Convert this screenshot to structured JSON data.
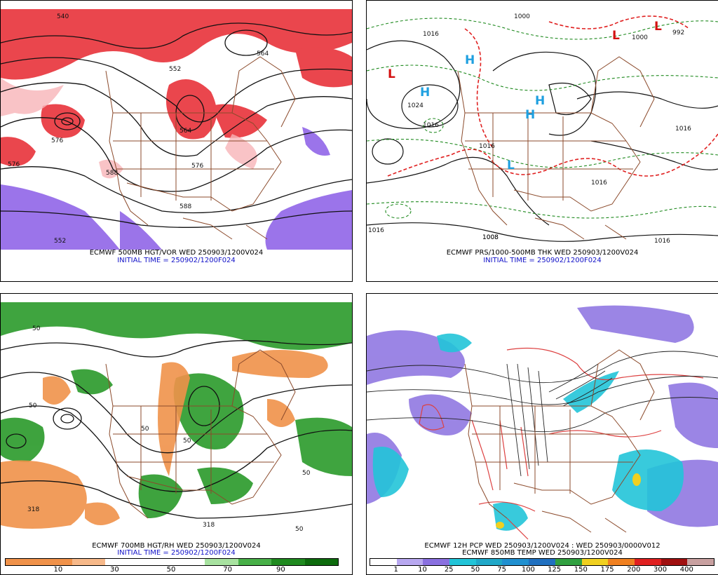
{
  "panels": {
    "top_left": {
      "title": "ECMWF 500MB HGT/VOR WED 250903/1200V024",
      "init": "INITIAL TIME = 250902/1200F024",
      "contour_labels": [
        "540",
        "552",
        "576",
        "576",
        "588",
        "576",
        "564",
        "588",
        "564",
        "552"
      ]
    },
    "top_right": {
      "title": "ECMWF PRS/1000-500MB THK WED 250903/1200V024",
      "init": "INITIAL TIME = 250902/1200F024",
      "centers": [
        "L",
        "H",
        "H",
        "H",
        "H",
        "L",
        "L",
        "L"
      ],
      "isobar_labels": [
        "1000",
        "1008",
        "1016",
        "1024",
        "1016",
        "1016",
        "1016",
        "1008",
        "1016",
        "1016",
        "992",
        "1000",
        "1016"
      ]
    },
    "bottom_left": {
      "title": "ECMWF 700MB HGT/RH WED 250903/1200V024",
      "init": "INITIAL TIME = 250902/1200F024",
      "scale": [
        "10",
        "30",
        "50",
        "70",
        "90"
      ],
      "contour_labels": [
        "50",
        "50",
        "50",
        "50",
        "318",
        "318",
        "50",
        "50"
      ]
    },
    "bottom_right": {
      "title": "ECMWF 12H PCP WED 250903/1200V024 : WED 250903/0000V012",
      "subtitle": "ECMWF 850MB TEMP WED 250903/1200V024",
      "scale": [
        "1",
        "10",
        "25",
        "50",
        "75",
        "100",
        "125",
        "150",
        "175",
        "200",
        "300",
        "400"
      ]
    }
  },
  "colors": {
    "vorticity_red": "#e8232a",
    "vorticity_purple": "#8a5ce6",
    "rh_green": "#1f9a1f",
    "rh_orange": "#f0924a",
    "map_borders": "#8b4a2b",
    "high_blue": "#1fa0e0",
    "low_red": "#d41010",
    "thickness_red": "#e02020",
    "thickness_green": "#209020",
    "caption_blue": "#1010c8"
  }
}
